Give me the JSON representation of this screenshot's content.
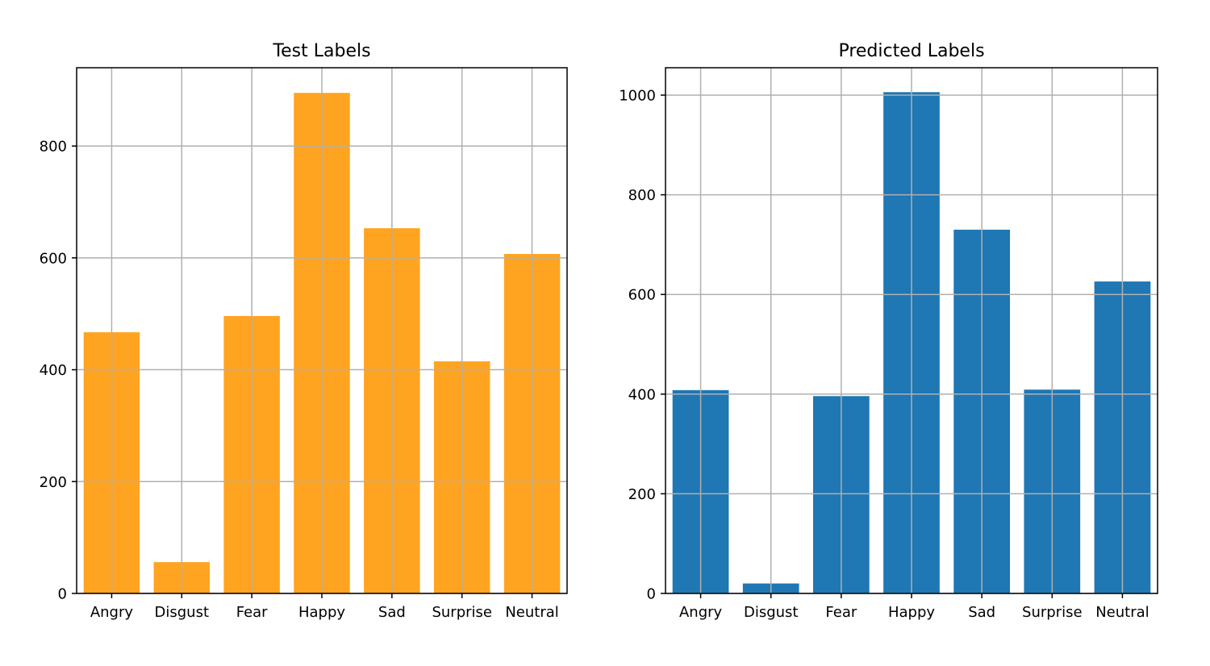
{
  "chart_data": [
    {
      "type": "bar",
      "title": "Test Labels",
      "categories": [
        "Angry",
        "Disgust",
        "Fear",
        "Happy",
        "Sad",
        "Surprise",
        "Neutral"
      ],
      "values": [
        467,
        56,
        496,
        895,
        653,
        415,
        607
      ],
      "ylim": [
        0,
        940
      ],
      "yticks": [
        0,
        200,
        400,
        600,
        800
      ],
      "color": "#ffa420",
      "grid": true
    },
    {
      "type": "bar",
      "title": "Predicted Labels",
      "categories": [
        "Angry",
        "Disgust",
        "Fear",
        "Happy",
        "Sad",
        "Surprise",
        "Neutral"
      ],
      "values": [
        408,
        20,
        396,
        1006,
        730,
        409,
        626
      ],
      "ylim": [
        0,
        1055
      ],
      "yticks": [
        0,
        200,
        400,
        600,
        800,
        1000
      ],
      "color": "#1f77b4",
      "grid": true
    }
  ]
}
